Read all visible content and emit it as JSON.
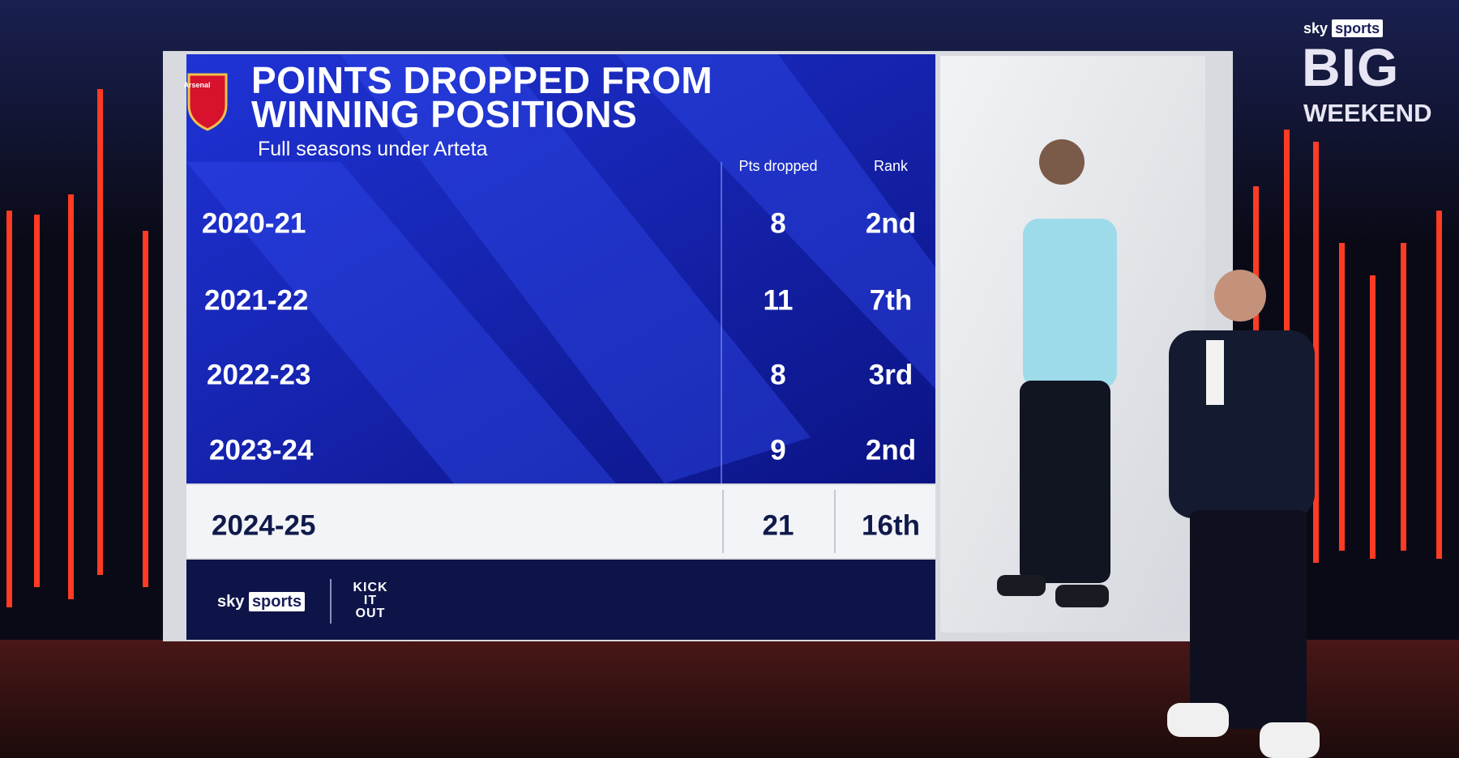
{
  "header": {
    "title_lines": [
      "POINTS DROPPED FROM",
      "WINNING POSITIONS"
    ],
    "subtitle": "Full seasons under Arteta",
    "crest": "Arsenal"
  },
  "table": {
    "columns": [
      "Pts dropped",
      "Rank"
    ],
    "rows": [
      [
        "2020-21",
        8,
        "2nd"
      ],
      [
        "2021-22",
        11,
        "7th"
      ],
      [
        "2022-23",
        8,
        "3rd"
      ],
      [
        "2023-24",
        9,
        "2nd"
      ],
      [
        "2024-25",
        21,
        "16th"
      ]
    ]
  },
  "footer": {
    "brand": [
      "sky",
      "sports"
    ],
    "partner": [
      "KICK",
      "IT",
      "OUT"
    ]
  },
  "corner_logo": {
    "brand": [
      "sky",
      "sports"
    ],
    "show": [
      "BIG",
      "WEEKEND"
    ]
  }
}
